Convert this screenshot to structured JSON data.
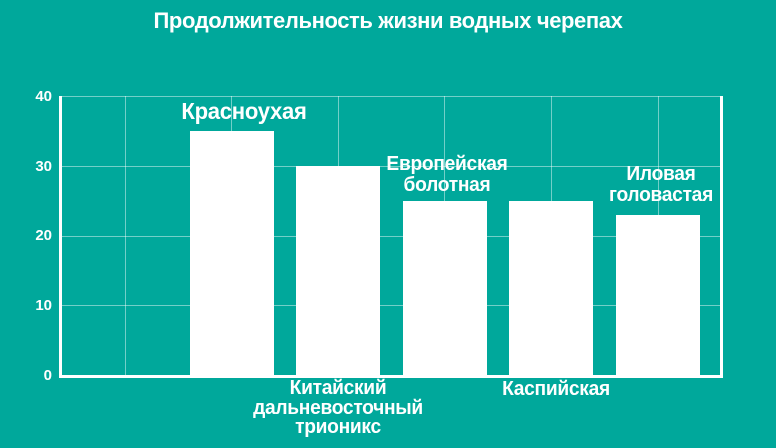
{
  "title": "Продолжительность жизни водных черепах",
  "colors": {
    "background": "#00a89b",
    "bar": "#ffffff",
    "text": "#ffffff",
    "axis": "#ffffff",
    "gridline": "rgba(255,255,255,0.45)"
  },
  "chart_data": {
    "type": "bar",
    "title": "Продолжительность жизни водных черепах",
    "categories": [
      "Красноухая",
      "Китайский дальневосточный трионикс",
      "Европейская болотная",
      "Каспийская",
      "Иловая головастая"
    ],
    "values": [
      35,
      30,
      25,
      25,
      23
    ],
    "xlabel": "",
    "ylabel": "",
    "ylim": [
      0,
      40
    ],
    "yticks": [
      0,
      10,
      20,
      30,
      40
    ],
    "grid": true,
    "legend": false,
    "bar_color": "#ffffff",
    "background_color": "#00a89b",
    "label_placement": [
      "above-bar",
      "below-axis",
      "above-bar",
      "below-axis",
      "above-bar"
    ]
  },
  "labels": {
    "krasnouhaya": "Красноухая",
    "kitayskiy_lines": [
      "Китайский",
      "дальневосточный",
      "трионикс"
    ],
    "evropeyskaya_lines": [
      "Европейская",
      "болотная"
    ],
    "kaspiyskaya": "Каспийская",
    "ilovaya_lines": [
      "Иловая",
      "головастая"
    ]
  }
}
